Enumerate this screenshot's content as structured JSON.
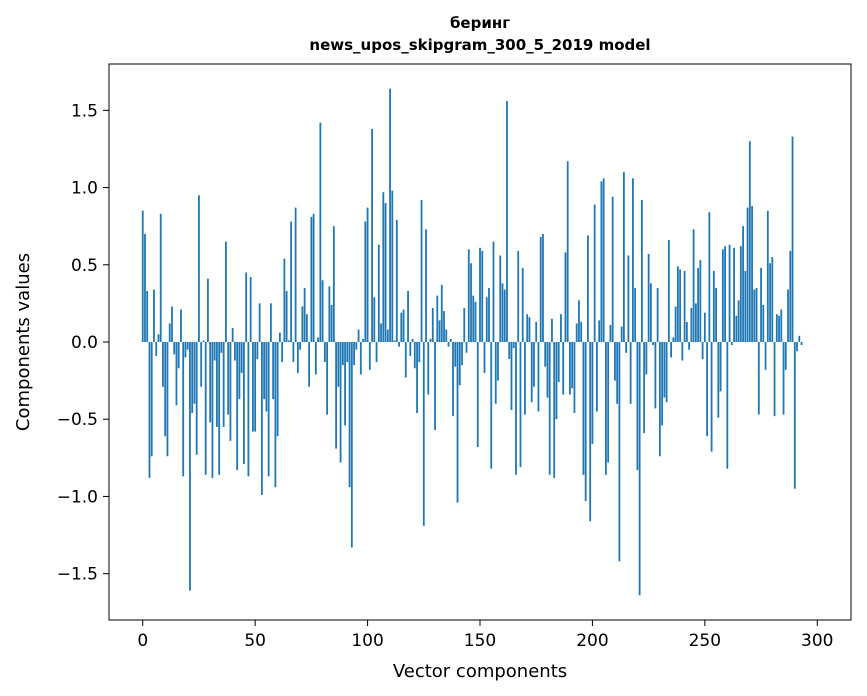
{
  "chart_data": {
    "type": "bar",
    "title": "беринг",
    "subtitle": "news_upos_skipgram_300_5_2019 model",
    "xlabel": "Vector components",
    "ylabel": "Components values",
    "xlim": [
      -15,
      315
    ],
    "ylim": [
      -1.8,
      1.8
    ],
    "xticks": [
      0,
      50,
      100,
      150,
      200,
      250,
      300
    ],
    "xtick_labels": [
      "0",
      "50",
      "100",
      "150",
      "200",
      "250",
      "300"
    ],
    "yticks": [
      -1.5,
      -1.0,
      -0.5,
      0.0,
      0.5,
      1.0,
      1.5
    ],
    "ytick_labels": [
      "−1.5",
      "−1.0",
      "−0.5",
      "0.0",
      "0.5",
      "1.0",
      "1.5"
    ],
    "grid": false,
    "bar_color": "#1f77b4",
    "values": [
      0.85,
      0.7,
      0.33,
      -0.88,
      -0.74,
      0.34,
      -0.09,
      0.05,
      0.83,
      -0.29,
      -0.61,
      -0.74,
      0.12,
      0.23,
      -0.08,
      -0.41,
      -0.17,
      0.21,
      -0.87,
      -0.1,
      -0.05,
      -1.61,
      -0.46,
      -0.4,
      -0.73,
      0.95,
      -0.29,
      0.01,
      -0.86,
      0.41,
      -0.52,
      -0.88,
      -0.12,
      -0.55,
      -0.86,
      -0.07,
      -0.55,
      0.65,
      -0.47,
      -0.64,
      0.09,
      -0.12,
      -0.83,
      -0.37,
      -0.2,
      -0.79,
      0.45,
      -0.87,
      0.42,
      -0.58,
      -0.58,
      -0.11,
      0.25,
      -0.99,
      -0.37,
      -0.45,
      -0.87,
      0.25,
      -0.37,
      -0.94,
      -0.61,
      0.06,
      -0.13,
      0.54,
      0.33,
      0.01,
      0.78,
      -0.13,
      0.87,
      -0.2,
      -0.05,
      0.23,
      0.35,
      0.18,
      -0.29,
      0.81,
      0.83,
      -0.21,
      0.03,
      1.42,
      0.4,
      -0.13,
      -0.47,
      0.36,
      0.24,
      0.75,
      -0.69,
      -0.29,
      -0.78,
      -0.15,
      -0.54,
      -0.13,
      -0.94,
      -1.33,
      -0.15,
      -0.05,
      0.08,
      -0.21,
      0.02,
      0.78,
      0.87,
      -0.18,
      1.38,
      0.29,
      -0.13,
      0.63,
      0.12,
      0.97,
      0.9,
      0.08,
      1.64,
      0.98,
      0.01,
      0.79,
      -0.03,
      0.19,
      0.21,
      -0.23,
      0.33,
      -0.09,
      0.02,
      -0.17,
      -0.46,
      -0.13,
      0.92,
      -1.19,
      0.73,
      -0.34,
      0.02,
      0.22,
      -0.57,
      0.3,
      0.14,
      0.37,
      0.2,
      0.08,
      -0.03,
      0.02,
      -0.48,
      -0.16,
      -1.04,
      -0.28,
      -0.15,
      0.22,
      -0.07,
      0.6,
      0.51,
      0.3,
      0.26,
      -0.68,
      0.61,
      0.59,
      -0.2,
      0.29,
      0.35,
      -0.82,
      0.65,
      -0.4,
      -0.25,
      0.56,
      0.38,
      0.34,
      1.56,
      -0.11,
      -0.44,
      -0.04,
      -0.86,
      0.59,
      -0.81,
      0.48,
      -0.47,
      0.18,
      0.16,
      -0.39,
      -0.29,
      0.13,
      -0.45,
      0.68,
      0.7,
      -0.16,
      -0.36,
      -0.86,
      0.15,
      -0.88,
      -0.5,
      -0.26,
      0.18,
      -0.34,
      0.58,
      1.17,
      -0.34,
      -0.3,
      -0.46,
      0.12,
      0.27,
      0.13,
      -0.86,
      -1.03,
      0.69,
      -1.16,
      -0.66,
      0.89,
      -0.45,
      0.14,
      1.04,
      1.06,
      -0.86,
      -0.78,
      0.11,
      0.94,
      -0.25,
      -0.4,
      -1.42,
      0.1,
      1.1,
      -0.07,
      0.56,
      -0.4,
      1.06,
      0.35,
      -0.83,
      -1.64,
      0.92,
      -0.59,
      -0.21,
      0.57,
      0.38,
      -0.02,
      -0.43,
      0.35,
      -0.74,
      -0.54,
      -0.36,
      -0.39,
      0.66,
      -0.1,
      0.03,
      0.23,
      0.49,
      0.47,
      -0.12,
      0.46,
      0.13,
      -0.05,
      0.22,
      0.73,
      0.25,
      0.48,
      0.53,
      -0.11,
      0.19,
      -0.61,
      0.84,
      -0.71,
      0.46,
      0.35,
      -0.49,
      -0.32,
      0.6,
      0.62,
      -0.82,
      0.63,
      -0.02,
      0.61,
      0.17,
      0.27,
      0.62,
      0.75,
      0.46,
      0.87,
      1.3,
      0.88,
      0.34,
      0.35,
      -0.47,
      0.48,
      0.24,
      -0.18,
      0.85,
      0.51,
      0.55,
      -0.48,
      0.18,
      0.17,
      0.21,
      -0.47,
      -0.18,
      0.34,
      0.59,
      1.33,
      -0.95,
      -0.06,
      0.04,
      -0.02
    ]
  }
}
